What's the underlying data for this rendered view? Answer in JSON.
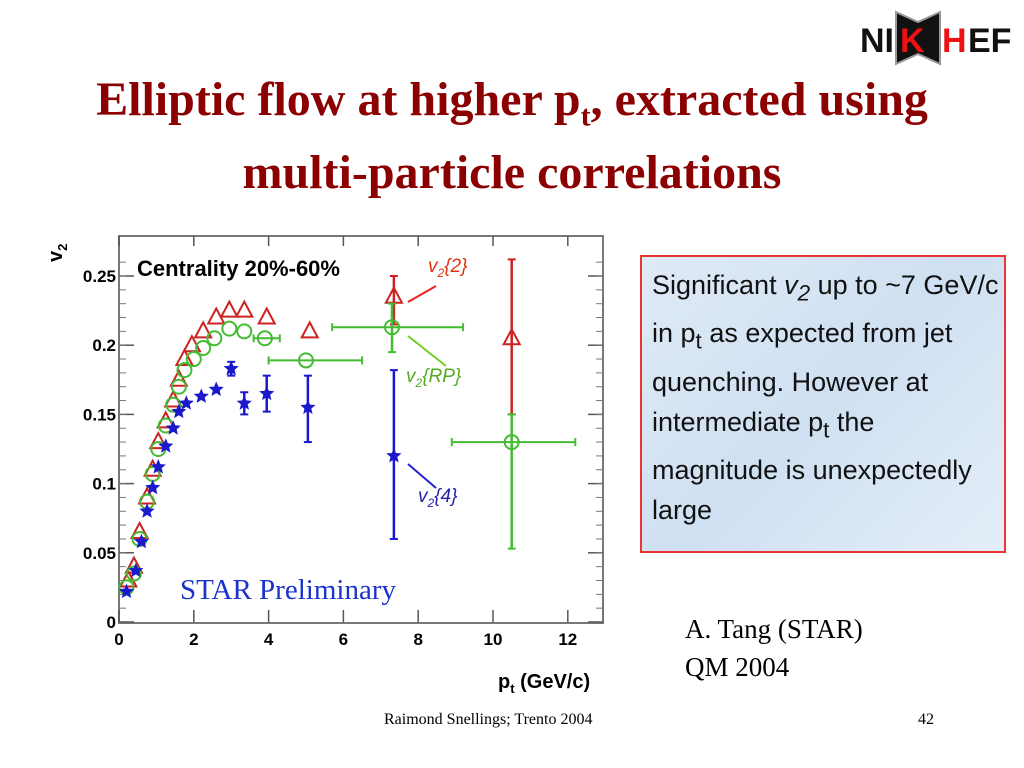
{
  "slide": {
    "title_main": "Elliptic flow at higher p",
    "title_sub": "t",
    "title_rest": ", extracted using multi-particle correlations",
    "logo_text": "NIKHEF",
    "note": {
      "p1": "Significant ",
      "v": "v",
      "v_sub": "2",
      "p2": " up to ~7 GeV/c in p",
      "pt_sub": "t",
      "p3": " as expected from jet quenching. However at intermediate p",
      "pt_sub2": "t",
      "p4": " the magnitude is unexpectedly large"
    },
    "credit_line1": "A. Tang (STAR)",
    "credit_line2": "QM 2004",
    "footer": "Raimond Snellings; Trento 2004",
    "page_number": "42"
  },
  "chart_data": {
    "type": "scatter",
    "title": "Centrality 20%-60%",
    "annotation": "STAR Preliminary",
    "xlabel": "p",
    "xlabel_sub": "t",
    "xlabel_unit": " (GeV/c)",
    "ylabel": "v",
    "ylabel_sub": "2",
    "xlim": [
      0,
      13.2
    ],
    "ylim": [
      0,
      0.28
    ],
    "xticks": [
      "0",
      "2",
      "4",
      "6",
      "8",
      "10",
      "12"
    ],
    "yticks": [
      "0",
      "0.05",
      "0.1",
      "0.15",
      "0.2",
      "0.25"
    ],
    "series": [
      {
        "name": "v2{2}",
        "label": "v",
        "label_sub": "2",
        "label_rest": "{2}",
        "color": "#cc2222",
        "marker": "triangle",
        "points": [
          [
            0.25,
            0.03
          ],
          [
            0.4,
            0.04
          ],
          [
            0.55,
            0.065
          ],
          [
            0.75,
            0.09
          ],
          [
            0.9,
            0.11
          ],
          [
            1.05,
            0.13
          ],
          [
            1.25,
            0.145
          ],
          [
            1.45,
            0.16
          ],
          [
            1.6,
            0.175
          ],
          [
            1.75,
            0.19
          ],
          [
            1.95,
            0.2
          ],
          [
            2.25,
            0.21
          ],
          [
            2.6,
            0.22
          ],
          [
            2.95,
            0.225
          ],
          [
            3.35,
            0.225
          ],
          [
            3.95,
            0.22
          ],
          [
            5.1,
            0.21
          ],
          [
            7.35,
            0.235
          ],
          [
            10.5,
            0.205
          ]
        ],
        "yerr": [
          [
            7.35,
            0.215,
            0.25
          ],
          [
            10.5,
            0.15,
            0.262
          ]
        ]
      },
      {
        "name": "v2{RP}",
        "label": "v",
        "label_sub": "2",
        "label_rest": "{RP}",
        "color": "#44bb33",
        "marker": "circle",
        "points": [
          [
            0.2,
            0.025
          ],
          [
            0.4,
            0.035
          ],
          [
            0.55,
            0.06
          ],
          [
            0.75,
            0.087
          ],
          [
            0.9,
            0.107
          ],
          [
            1.05,
            0.125
          ],
          [
            1.25,
            0.142
          ],
          [
            1.45,
            0.157
          ],
          [
            1.6,
            0.17
          ],
          [
            1.75,
            0.182
          ],
          [
            2.0,
            0.19
          ],
          [
            2.25,
            0.198
          ],
          [
            2.55,
            0.205
          ],
          [
            2.95,
            0.212
          ],
          [
            3.35,
            0.21
          ],
          [
            3.9,
            0.205
          ],
          [
            5.0,
            0.189
          ],
          [
            7.3,
            0.213
          ],
          [
            10.5,
            0.13
          ]
        ],
        "xerr": [
          [
            3.9,
            3.6,
            4.3
          ],
          [
            5.0,
            4.0,
            6.5
          ],
          [
            7.3,
            5.7,
            9.2
          ],
          [
            10.5,
            8.9,
            12.2
          ]
        ],
        "yerr": [
          [
            7.3,
            0.195,
            0.23
          ],
          [
            10.5,
            0.053,
            0.15
          ]
        ]
      },
      {
        "name": "v2{4}",
        "label": "v",
        "label_sub": "2",
        "label_rest": "{4}",
        "color": "#1a1acc",
        "marker": "star",
        "points": [
          [
            0.2,
            0.022
          ],
          [
            0.45,
            0.037
          ],
          [
            0.6,
            0.058
          ],
          [
            0.75,
            0.08
          ],
          [
            0.9,
            0.097
          ],
          [
            1.05,
            0.112
          ],
          [
            1.25,
            0.127
          ],
          [
            1.45,
            0.14
          ],
          [
            1.6,
            0.152
          ],
          [
            1.8,
            0.158
          ],
          [
            2.2,
            0.163
          ],
          [
            2.6,
            0.168
          ],
          [
            3.0,
            0.183
          ],
          [
            3.35,
            0.158
          ],
          [
            3.95,
            0.165
          ],
          [
            5.05,
            0.155
          ],
          [
            7.35,
            0.12
          ]
        ],
        "yerr": [
          [
            3.0,
            0.178,
            0.188
          ],
          [
            3.35,
            0.15,
            0.166
          ],
          [
            3.95,
            0.152,
            0.178
          ],
          [
            5.05,
            0.13,
            0.178
          ],
          [
            7.35,
            0.06,
            0.182
          ]
        ]
      }
    ]
  }
}
